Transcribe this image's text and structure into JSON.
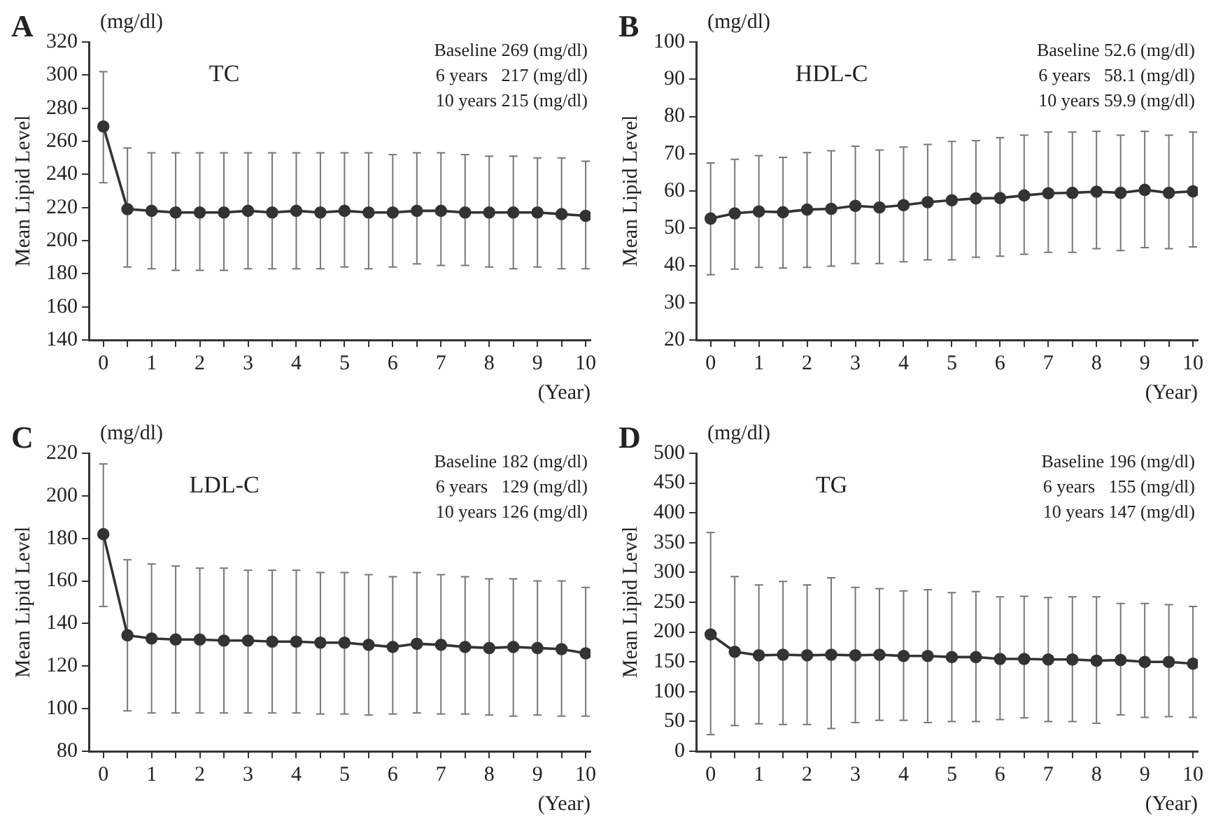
{
  "chart_data": [
    {
      "type": "line",
      "title": "A",
      "subtitle": "TC",
      "ylabel": "Mean Lipid Level",
      "xlabel": "(Year)",
      "annotations": [
        "(mg/dl)",
        "Baseline 269 (mg/dl)",
        "6 years   217 (mg/dl)",
        "10 years 215 (mg/dl)"
      ],
      "x": [
        0,
        0.5,
        1,
        1.5,
        2,
        2.5,
        3,
        3.5,
        4,
        4.5,
        5,
        5.5,
        6,
        6.5,
        7,
        7.5,
        8,
        8.5,
        9,
        9.5,
        10
      ],
      "series": [
        {
          "color": "#333333",
          "values": [
            269,
            219,
            218,
            217,
            217,
            217,
            218,
            217,
            218,
            217,
            218,
            217,
            217,
            218,
            218,
            217,
            217,
            217,
            217,
            216,
            215
          ],
          "errors": [
            [
              235,
              302
            ],
            [
              184,
              256
            ],
            [
              183,
              253
            ],
            [
              182,
              253
            ],
            [
              182,
              253
            ],
            [
              182,
              253
            ],
            [
              183,
              253
            ],
            [
              183,
              253
            ],
            [
              183,
              253
            ],
            [
              183,
              253
            ],
            [
              184,
              253
            ],
            [
              183,
              253
            ],
            [
              184,
              252
            ],
            [
              186,
              253
            ],
            [
              185,
              253
            ],
            [
              185,
              252
            ],
            [
              184,
              251
            ],
            [
              183,
              251
            ],
            [
              184,
              250
            ],
            [
              183,
              250
            ],
            [
              183,
              248
            ]
          ]
        }
      ],
      "xlim": [
        -0.3,
        10.1
      ],
      "xticks": [
        0,
        {
          "value": 0.5,
          "label": null
        },
        1,
        {
          "value": 1.5,
          "label": null
        },
        2,
        {
          "value": 2.5,
          "label": null
        },
        3,
        {
          "value": 3.5,
          "label": null
        },
        4,
        {
          "value": 4.5,
          "label": null
        },
        5,
        {
          "value": 5.5,
          "label": null
        },
        6,
        {
          "value": 6.5,
          "label": null
        },
        7,
        {
          "value": 7.5,
          "label": null
        },
        8,
        {
          "value": 8.5,
          "label": null
        },
        9,
        {
          "value": 9.5,
          "label": null
        },
        10
      ],
      "ylim": [
        140,
        320
      ],
      "yticks": [
        140,
        160,
        180,
        200,
        220,
        240,
        260,
        280,
        300,
        320
      ],
      "marker": "circle",
      "grid": false,
      "legend": false
    },
    {
      "type": "line",
      "title": "B",
      "subtitle": "HDL-C",
      "ylabel": "Mean Lipid Level",
      "xlabel": "(Year)",
      "annotations": [
        "(mg/dl)",
        "Baseline 52.6 (mg/dl)",
        "6 years   58.1 (mg/dl)",
        "10 years 59.9 (mg/dl)"
      ],
      "x": [
        0,
        0.5,
        1,
        1.5,
        2,
        2.5,
        3,
        3.5,
        4,
        4.5,
        5,
        5.5,
        6,
        6.5,
        7,
        7.5,
        8,
        8.5,
        9,
        9.5,
        10
      ],
      "series": [
        {
          "color": "#333333",
          "values": [
            52.6,
            54,
            54.5,
            54.3,
            55,
            55.2,
            56,
            55.6,
            56.2,
            57,
            57.5,
            58,
            58.1,
            58.8,
            59.4,
            59.5,
            59.8,
            59.5,
            60.3,
            59.5,
            59.9
          ],
          "errors": [
            [
              37.5,
              67.5
            ],
            [
              39,
              68.5
            ],
            [
              39.5,
              69.5
            ],
            [
              39.3,
              69
            ],
            [
              39.5,
              70.3
            ],
            [
              39.8,
              70.8
            ],
            [
              40.5,
              72
            ],
            [
              40.5,
              71
            ],
            [
              41,
              71.8
            ],
            [
              41.5,
              72.5
            ],
            [
              41.5,
              73.3
            ],
            [
              42.2,
              73.5
            ],
            [
              42.5,
              74.3
            ],
            [
              43,
              75
            ],
            [
              43.5,
              75.8
            ],
            [
              43.5,
              75.8
            ],
            [
              44.5,
              76
            ],
            [
              44,
              75
            ],
            [
              44.8,
              76
            ],
            [
              44.5,
              75
            ],
            [
              45,
              75.8
            ]
          ]
        }
      ],
      "xlim": [
        -0.3,
        10.1
      ],
      "xticks": [
        0,
        {
          "value": 0.5,
          "label": null
        },
        1,
        {
          "value": 1.5,
          "label": null
        },
        2,
        {
          "value": 2.5,
          "label": null
        },
        3,
        {
          "value": 3.5,
          "label": null
        },
        4,
        {
          "value": 4.5,
          "label": null
        },
        5,
        {
          "value": 5.5,
          "label": null
        },
        6,
        {
          "value": 6.5,
          "label": null
        },
        7,
        {
          "value": 7.5,
          "label": null
        },
        8,
        {
          "value": 8.5,
          "label": null
        },
        9,
        {
          "value": 9.5,
          "label": null
        },
        10
      ],
      "ylim": [
        20,
        100
      ],
      "yticks": [
        20,
        30,
        40,
        50,
        60,
        70,
        80,
        90,
        100
      ],
      "marker": "circle",
      "grid": false,
      "legend": false
    },
    {
      "type": "line",
      "title": "C",
      "subtitle": "LDL-C",
      "ylabel": "Mean Lipid Level",
      "xlabel": "(Year)",
      "annotations": [
        "(mg/dl)",
        "Baseline 182 (mg/dl)",
        "6 years   129 (mg/dl)",
        "10 years 126 (mg/dl)"
      ],
      "x": [
        0,
        0.5,
        1,
        1.5,
        2,
        2.5,
        3,
        3.5,
        4,
        4.5,
        5,
        5.5,
        6,
        6.5,
        7,
        7.5,
        8,
        8.5,
        9,
        9.5,
        10
      ],
      "series": [
        {
          "color": "#333333",
          "values": [
            182,
            134.5,
            133,
            132.5,
            132.5,
            132,
            132,
            131.5,
            131.5,
            131,
            131,
            130,
            129,
            130.5,
            130,
            129,
            128.5,
            129,
            128.5,
            128,
            126
          ],
          "errors": [
            [
              148,
              215
            ],
            [
              99,
              170
            ],
            [
              98,
              168
            ],
            [
              98,
              167
            ],
            [
              98,
              166
            ],
            [
              98,
              166
            ],
            [
              98,
              165
            ],
            [
              98,
              165
            ],
            [
              98,
              165
            ],
            [
              97.5,
              164
            ],
            [
              97.5,
              164
            ],
            [
              97,
              163
            ],
            [
              97.5,
              162
            ],
            [
              98,
              164
            ],
            [
              97.5,
              163
            ],
            [
              97.5,
              162
            ],
            [
              97,
              161
            ],
            [
              96.5,
              161
            ],
            [
              97,
              160
            ],
            [
              96.5,
              160
            ],
            [
              96.5,
              157
            ]
          ]
        }
      ],
      "xlim": [
        -0.3,
        10.1
      ],
      "xticks": [
        0,
        {
          "value": 0.5,
          "label": null
        },
        1,
        {
          "value": 1.5,
          "label": null
        },
        2,
        {
          "value": 2.5,
          "label": null
        },
        3,
        {
          "value": 3.5,
          "label": null
        },
        4,
        {
          "value": 4.5,
          "label": null
        },
        5,
        {
          "value": 5.5,
          "label": null
        },
        6,
        {
          "value": 6.5,
          "label": null
        },
        7,
        {
          "value": 7.5,
          "label": null
        },
        8,
        {
          "value": 8.5,
          "label": null
        },
        9,
        {
          "value": 9.5,
          "label": null
        },
        10
      ],
      "ylim": [
        80,
        220
      ],
      "yticks": [
        80,
        100,
        120,
        140,
        160,
        180,
        200,
        220
      ],
      "marker": "circle",
      "grid": false,
      "legend": false
    },
    {
      "type": "line",
      "title": "D",
      "subtitle": "TG",
      "ylabel": "Mean Lipid Level",
      "xlabel": "(Year)",
      "annotations": [
        "(mg/dl)",
        "Baseline 196 (mg/dl)",
        "6 years   155 (mg/dl)",
        "10 years 147 (mg/dl)"
      ],
      "x": [
        0,
        0.5,
        1,
        1.5,
        2,
        2.5,
        3,
        3.5,
        4,
        4.5,
        5,
        5.5,
        6,
        6.5,
        7,
        7.5,
        8,
        8.5,
        9,
        9.5,
        10
      ],
      "series": [
        {
          "color": "#333333",
          "values": [
            196,
            167,
            161,
            162,
            161,
            162,
            161,
            162,
            160,
            160,
            158,
            158,
            155,
            155,
            154,
            154,
            152,
            153,
            150,
            150,
            147
          ],
          "errors": [
            [
              28,
              367
            ],
            [
              43,
              293
            ],
            [
              46,
              279
            ],
            [
              45,
              285
            ],
            [
              45,
              279
            ],
            [
              38,
              291
            ],
            [
              48,
              275
            ],
            [
              52,
              273
            ],
            [
              52,
              269
            ],
            [
              48,
              271
            ],
            [
              50,
              266
            ],
            [
              50,
              268
            ],
            [
              53,
              259
            ],
            [
              56,
              260
            ],
            [
              50,
              258
            ],
            [
              50,
              259
            ],
            [
              47,
              259
            ],
            [
              61,
              248
            ],
            [
              57,
              248
            ],
            [
              58,
              246
            ],
            [
              57,
              243
            ]
          ]
        }
      ],
      "xlim": [
        -0.3,
        10.1
      ],
      "xticks": [
        0,
        {
          "value": 0.5,
          "label": null
        },
        1,
        {
          "value": 1.5,
          "label": null
        },
        2,
        {
          "value": 2.5,
          "label": null
        },
        3,
        {
          "value": 3.5,
          "label": null
        },
        4,
        {
          "value": 4.5,
          "label": null
        },
        5,
        {
          "value": 5.5,
          "label": null
        },
        6,
        {
          "value": 6.5,
          "label": null
        },
        7,
        {
          "value": 7.5,
          "label": null
        },
        8,
        {
          "value": 8.5,
          "label": null
        },
        9,
        {
          "value": 9.5,
          "label": null
        },
        10
      ],
      "ylim": [
        0,
        500
      ],
      "yticks": [
        0,
        50,
        100,
        150,
        200,
        250,
        300,
        350,
        400,
        450,
        500
      ],
      "marker": "circle",
      "grid": false,
      "legend": false
    }
  ]
}
